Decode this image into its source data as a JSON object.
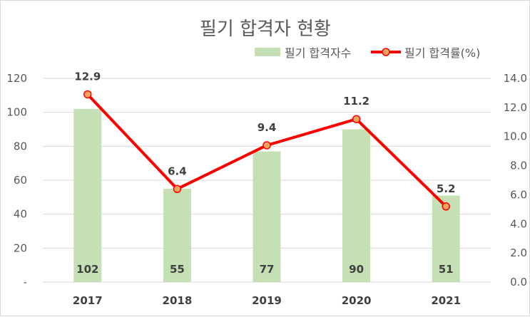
{
  "chart_data": {
    "type": "bar",
    "title": "필기 합격자 현황",
    "categories": [
      "2017",
      "2018",
      "2019",
      "2020",
      "2021"
    ],
    "series": [
      {
        "name": "필기 합격자수",
        "type": "bar",
        "axis": "left",
        "values": [
          102,
          55,
          77,
          90,
          51
        ],
        "color": "#c5e0b4"
      },
      {
        "name": "필기 합격률(%)",
        "type": "line",
        "axis": "right",
        "values": [
          12.9,
          6.4,
          9.4,
          11.2,
          5.2
        ],
        "color": "#ff0000",
        "marker_color": "#f4a460"
      }
    ],
    "y_left": {
      "ylim": [
        0,
        120
      ],
      "ticks": [
        "-",
        "20",
        "40",
        "60",
        "80",
        "100",
        "120"
      ]
    },
    "y_right": {
      "ylim": [
        0,
        14
      ],
      "ticks": [
        "0.0",
        "2.0",
        "4.0",
        "6.0",
        "8.0",
        "10.0",
        "12.0",
        "14.0"
      ]
    },
    "grid": true,
    "legend": "top-right"
  }
}
